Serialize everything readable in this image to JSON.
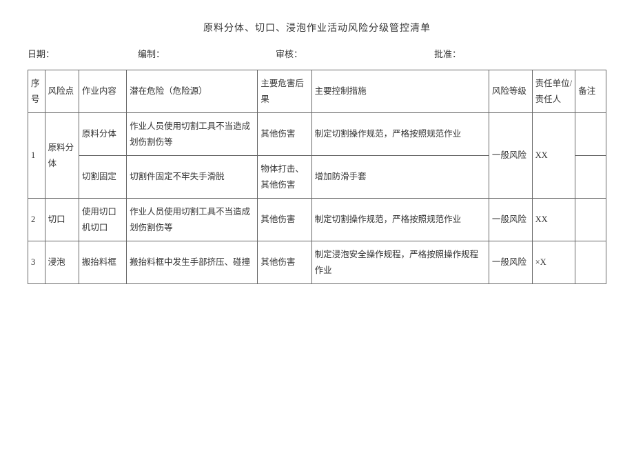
{
  "title": "原料分体、切口、浸泡作业活动风险分级管控清单",
  "meta": {
    "date_label": "日期：",
    "author_label": "编制：",
    "review_label": "审核：",
    "approve_label": "批准："
  },
  "headers": {
    "seq": "序号",
    "risk_point": "风险点",
    "work_content": "作业内容",
    "hazard": "潜在危险（危险源）",
    "consequence": "主要危害后果",
    "measure": "主要控制措施",
    "level": "风险等级",
    "responsible": "责任单位/责任人",
    "remark": "备注"
  },
  "rows": [
    {
      "seq": "1",
      "risk_point": "原料分体",
      "sub": [
        {
          "work_content": "原料分体",
          "hazard": "作业人员使用切割工具不当造成划伤割伤等",
          "consequence": "其他伤害",
          "measure": "制定切割操作规范，严格按照规范作业"
        },
        {
          "work_content": "切割固定",
          "hazard": "切割件固定不牢失手滑脱",
          "consequence": "物体打击、其他伤害",
          "measure": "增加防滑手套"
        }
      ],
      "level": "一般风险",
      "responsible": "XX",
      "remark": ""
    },
    {
      "seq": "2",
      "risk_point": "切口",
      "sub": [
        {
          "work_content": "使用切口机切口",
          "hazard": "作业人员使用切割工具不当造成划伤割伤等",
          "consequence": "其他伤害",
          "measure": "制定切割操作规范，严格按照规范作业"
        }
      ],
      "level": "一般风险",
      "responsible": "XX",
      "remark": ""
    },
    {
      "seq": "3",
      "risk_point": "浸泡",
      "sub": [
        {
          "work_content": "搬抬料框",
          "hazard": "搬抬料框中发生手部挤压、碰撞",
          "consequence": "其他伤害",
          "measure": "制定浸泡安全操作规程，严格按照操作规程作业"
        }
      ],
      "level": "一般风险",
      "responsible": "×X",
      "remark": ""
    }
  ]
}
